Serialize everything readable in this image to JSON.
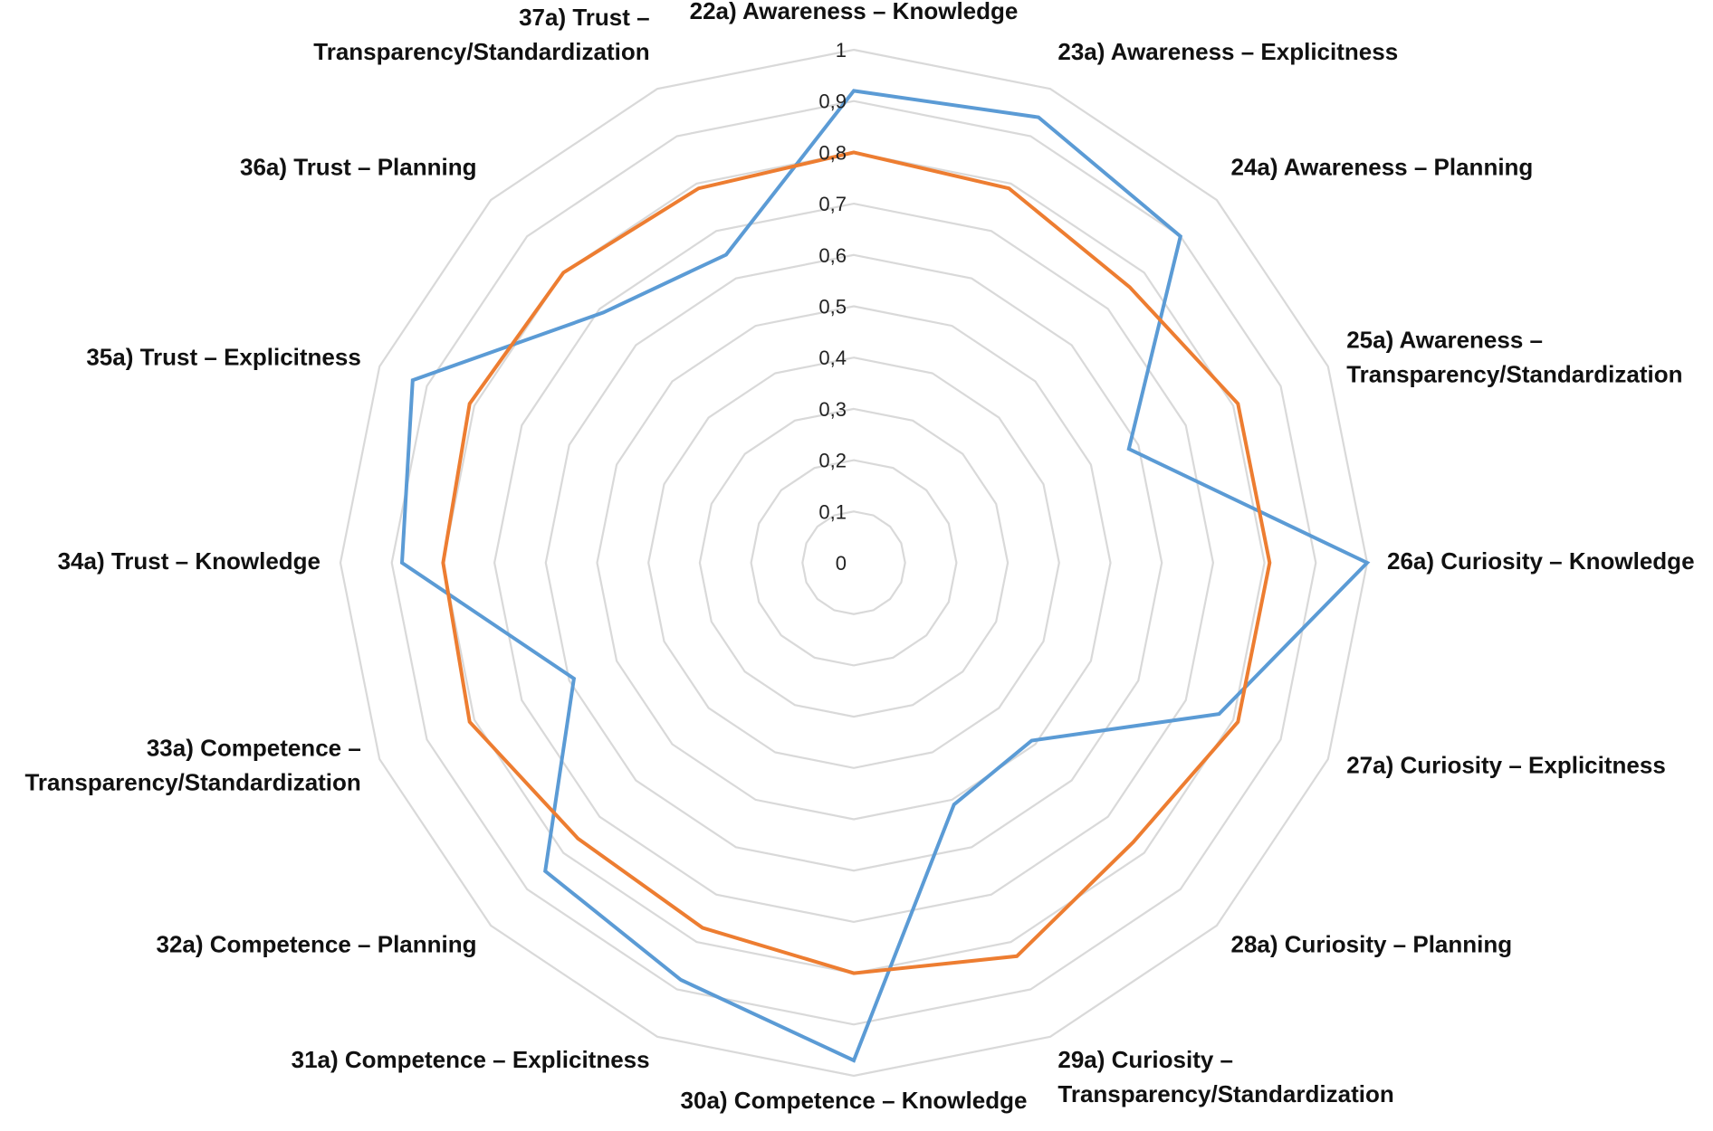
{
  "chart_data": {
    "type": "radar",
    "title": "",
    "categories": [
      [
        "22a) Awareness – Knowledge"
      ],
      [
        "23a) Awareness – Explicitness"
      ],
      [
        "24a) Awareness – Planning"
      ],
      [
        "25a) Awareness –",
        "Transparency/Standardization"
      ],
      [
        "26a) Curiosity – Knowledge"
      ],
      [
        "27a) Curiosity – Explicitness"
      ],
      [
        "28a) Curiosity – Planning"
      ],
      [
        "29a) Curiosity –",
        "Transparency/Standardization"
      ],
      [
        "30a) Competence – Knowledge"
      ],
      [
        "31a) Competence – Explicitness"
      ],
      [
        "32a) Competence – Planning"
      ],
      [
        "33a) Competence –",
        "Transparency/Standardization"
      ],
      [
        "34a) Trust – Knowledge"
      ],
      [
        "35a) Trust – Explicitness"
      ],
      [
        "36a) Trust – Planning"
      ],
      [
        "37a) Trust –",
        "Transparency/Standardization"
      ]
    ],
    "ticks": [
      "0",
      "0,1",
      "0,2",
      "0,3",
      "0,4",
      "0,5",
      "0,6",
      "0,7",
      "0,8",
      "0,9",
      "1"
    ],
    "rlim": [
      0,
      1
    ],
    "grid": true,
    "legend": "none",
    "series": [
      {
        "color": "#5b9bd5",
        "values": [
          0.92,
          0.94,
          0.9,
          0.58,
          1.0,
          0.77,
          0.49,
          0.51,
          0.97,
          0.88,
          0.85,
          0.59,
          0.88,
          0.93,
          0.69,
          0.65
        ]
      },
      {
        "color": "#ed7d31",
        "values": [
          0.8,
          0.79,
          0.76,
          0.81,
          0.81,
          0.81,
          0.77,
          0.83,
          0.8,
          0.77,
          0.76,
          0.81,
          0.8,
          0.81,
          0.8,
          0.79
        ]
      }
    ],
    "gridColor": "#d9d9d9"
  }
}
